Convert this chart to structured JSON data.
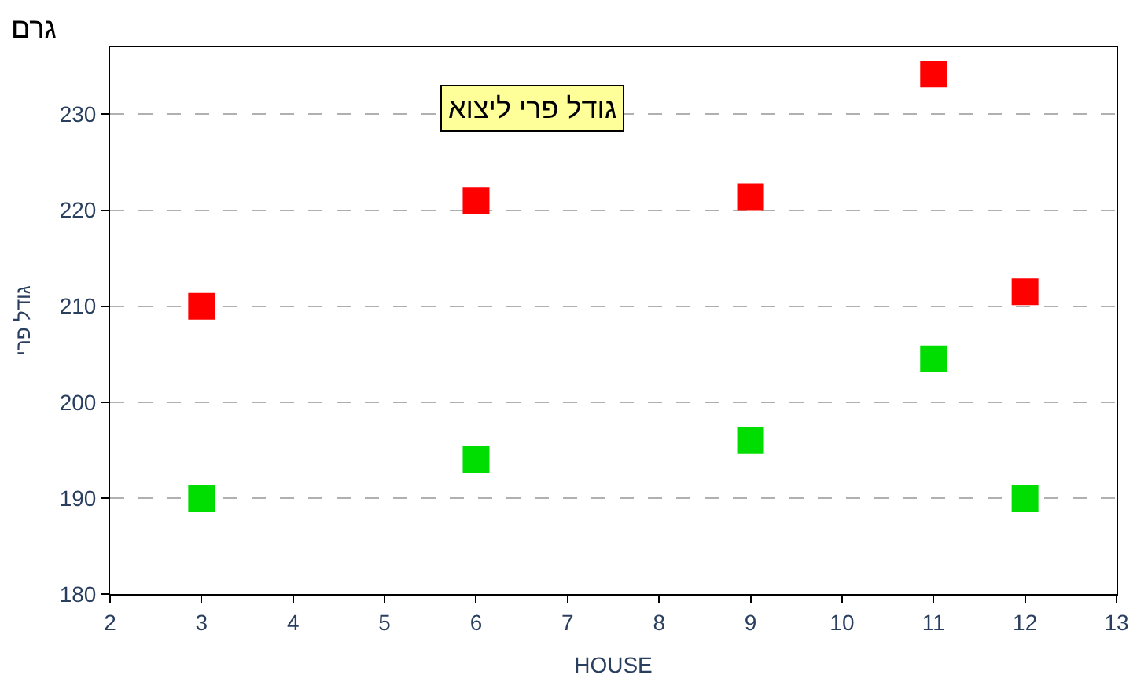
{
  "chart_data": {
    "type": "scatter",
    "title": "גודל פרי ליצוא",
    "xlabel": "HOUSE",
    "ylabel": "גודל פרי",
    "annotations": [
      "גרם"
    ],
    "series": [
      {
        "color": "#ff0000",
        "x": [
          3,
          6,
          9,
          11,
          12
        ],
        "values": [
          210,
          221,
          221.4,
          234.2,
          211.5
        ]
      },
      {
        "color": "#00dd00",
        "x": [
          3,
          6,
          9,
          11,
          12
        ],
        "values": [
          190,
          194,
          196,
          204.5,
          190
        ]
      }
    ],
    "xlim": [
      2,
      13
    ],
    "xticks": [
      2,
      3,
      4,
      5,
      6,
      7,
      8,
      9,
      10,
      11,
      12,
      13
    ],
    "ylim": [
      180,
      237
    ],
    "yticks": [
      180,
      190,
      200,
      210,
      220,
      230
    ],
    "grid": "y",
    "marker": "square"
  }
}
